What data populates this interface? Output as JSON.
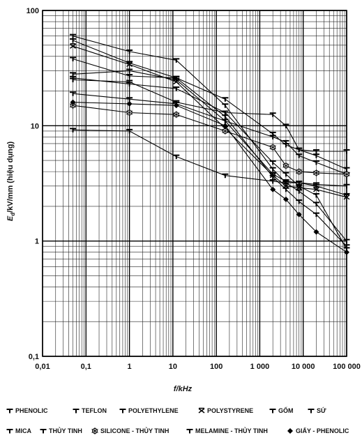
{
  "chart_data": {
    "type": "line",
    "x_scale": "log",
    "y_scale": "log",
    "xlabel": "f/kHz",
    "ylabel": "Ed/kV/mm (hiệu dụng)",
    "ylabel_main": "E",
    "ylabel_sub": "d",
    "ylabel_rest": "/kV/mm (hiệu dụng)",
    "xlim": [
      0.01,
      100000
    ],
    "ylim": [
      0.1,
      100
    ],
    "x_ticks": [
      {
        "value": 0.01,
        "label": "0,01"
      },
      {
        "value": 0.1,
        "label": "0,1"
      },
      {
        "value": 1,
        "label": "1"
      },
      {
        "value": 10,
        "label": "10"
      },
      {
        "value": 100,
        "label": "100"
      },
      {
        "value": 1000,
        "label": "1 000"
      },
      {
        "value": 10000,
        "label": "10 000"
      },
      {
        "value": 100000,
        "label": "100 000"
      }
    ],
    "y_ticks": [
      {
        "value": 0.1,
        "label": "0,1"
      },
      {
        "value": 1,
        "label": "1"
      },
      {
        "value": 10,
        "label": "10"
      },
      {
        "value": 100,
        "label": "100"
      }
    ],
    "grid": true,
    "legend_position": "bottom",
    "series": [
      {
        "name": "PHENOLIC",
        "marker": "tee",
        "x": [
          0.05,
          1,
          12,
          160,
          2000,
          4000,
          8000,
          20000,
          100000
        ],
        "y": [
          28,
          30,
          25,
          11,
          3.8,
          3.3,
          3.2,
          3.0,
          2.5
        ]
      },
      {
        "name": "TEFLON",
        "marker": "tee",
        "x": [
          0.05,
          1,
          12,
          160,
          2000,
          4000,
          8000,
          20000,
          100000
        ],
        "y": [
          60,
          44,
          37,
          15,
          4.2,
          3.2,
          2.7,
          2.1,
          1.0
        ]
      },
      {
        "name": "POLYETHYLENE",
        "marker": "tee",
        "x": [
          0.05,
          1,
          12,
          160,
          2000,
          4000,
          8000,
          20000,
          100000
        ],
        "y": [
          55,
          35,
          26,
          12,
          3.6,
          2.8,
          2.2,
          1.7,
          0.9
        ]
      },
      {
        "name": "POLYSTYRENE",
        "marker": "cross",
        "x": [
          0.05,
          1,
          12,
          160,
          2000,
          4000,
          8000,
          20000,
          100000
        ],
        "y": [
          49,
          34,
          24,
          9.5,
          3.7,
          3.0,
          2.9,
          2.8,
          2.4
        ]
      },
      {
        "name": "GỐM",
        "marker": "tee",
        "x": [
          0.05,
          1,
          12,
          160,
          2000,
          4000,
          8000,
          20000,
          100000
        ],
        "y": [
          38,
          27,
          26,
          17,
          8.5,
          6.8,
          6.2,
          5.5,
          4.2
        ]
      },
      {
        "name": "SỨ",
        "marker": "tee",
        "x": [
          0.05,
          1,
          12,
          160,
          2000,
          4000,
          8000,
          20000,
          100000
        ],
        "y": [
          26,
          23,
          21,
          13,
          12.5,
          10,
          6.2,
          6.0,
          6.0
        ]
      },
      {
        "name": "MICA",
        "marker": "tee",
        "x": [
          0.05,
          1,
          12,
          160,
          2000,
          4000,
          8000,
          20000,
          100000
        ],
        "y": [
          9.2,
          9.0,
          5.4,
          3.7,
          3.3,
          3.2,
          3.2,
          3.1,
          3.0
        ]
      },
      {
        "name": "THỦY TINH",
        "marker": "tee",
        "x": [
          0.05,
          1,
          12,
          160,
          2000,
          4000,
          8000,
          20000,
          100000
        ],
        "y": [
          19,
          17,
          15.5,
          11,
          8.0,
          7.2,
          5.5,
          4.8,
          3.8
        ]
      },
      {
        "name": "SILICONE - THỦY TINH",
        "marker": "snowflake",
        "x": [
          0.05,
          1,
          12,
          160,
          2000,
          4000,
          8000,
          20000,
          100000
        ],
        "y": [
          15,
          13,
          12.5,
          9,
          6.5,
          4.5,
          4.0,
          3.9,
          3.8
        ]
      },
      {
        "name": "MELAMINE - THỦY TINH",
        "marker": "tee",
        "x": [
          0.05,
          1,
          12,
          160,
          2000,
          4000,
          8000,
          20000,
          100000
        ],
        "y": [
          25,
          24,
          16,
          13,
          4.8,
          3.8,
          3.0,
          2.5,
          0.85
        ]
      },
      {
        "name": "GIẤY - PHENOLIC",
        "marker": "diamond",
        "x": [
          0.05,
          1,
          12,
          160,
          2000,
          4000,
          8000,
          20000,
          100000
        ],
        "y": [
          16,
          15.5,
          15,
          10,
          2.8,
          2.3,
          1.7,
          1.2,
          0.8
        ]
      }
    ]
  }
}
